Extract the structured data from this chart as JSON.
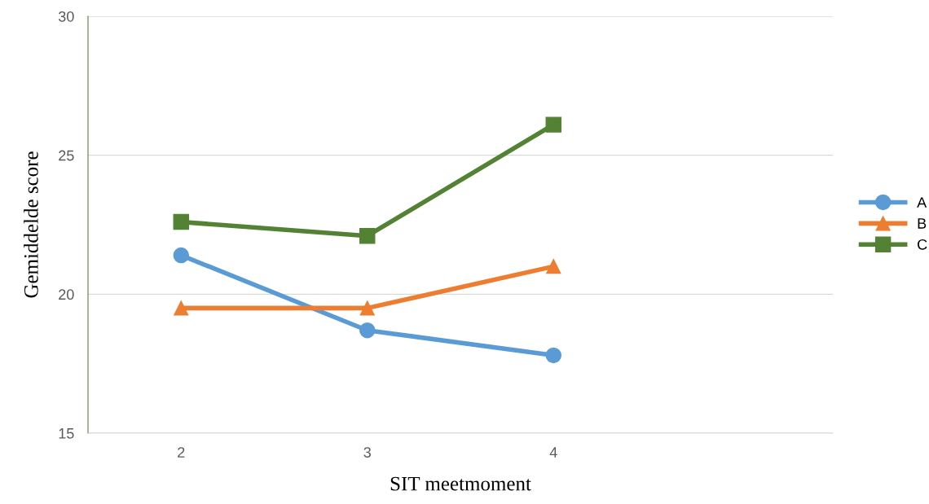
{
  "chart_data": {
    "type": "line",
    "xlabel": "SIT meetmoment",
    "ylabel": "Gemiddelde score",
    "x": [
      2,
      3,
      4
    ],
    "xlim": [
      1.5,
      5.5
    ],
    "xticks": [
      2,
      3,
      4
    ],
    "ylim": [
      15,
      30
    ],
    "yticks": [
      15,
      20,
      25,
      30
    ],
    "grid": "y",
    "legend": "right",
    "line_style": "solid",
    "series": [
      {
        "name": "A",
        "color": "#5b9bd5",
        "marker": "circle",
        "values": [
          21.4,
          18.7,
          17.8
        ]
      },
      {
        "name": "B",
        "color": "#ed7d31",
        "marker": "triangle",
        "values": [
          19.5,
          19.5,
          21.0
        ]
      },
      {
        "name": "C",
        "color": "#548235",
        "marker": "square",
        "values": [
          22.6,
          22.1,
          26.1
        ]
      }
    ]
  }
}
